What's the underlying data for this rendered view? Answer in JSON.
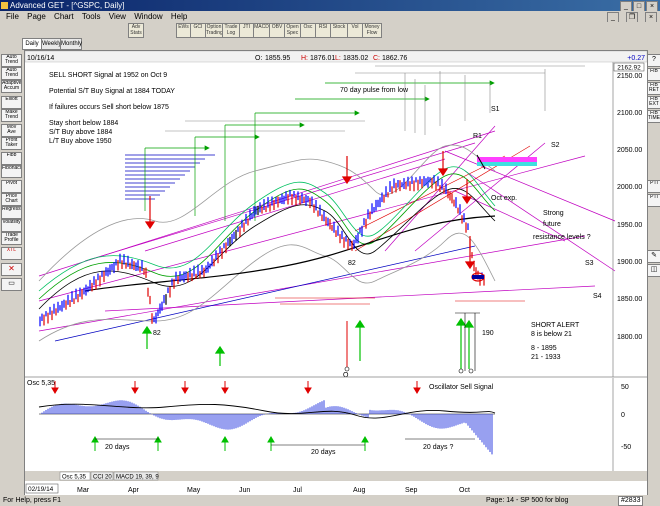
{
  "window": {
    "title": "Advanced GET - [^GSPC, Daily]"
  },
  "menu": [
    "File",
    "Page",
    "Chart",
    "Tools",
    "View",
    "Window",
    "Help"
  ],
  "toolbar": [
    "Adv Stats",
    "EWs",
    "GCI",
    "Option Trading",
    "Trade Log",
    "JTI",
    "MACD",
    "OBV",
    "Open Spec",
    "Osc",
    "RSI",
    "Stock",
    "Vol",
    "Money Flow"
  ],
  "period_tabs": [
    "Daily",
    "Weekly",
    "Monthly"
  ],
  "left_tools": [
    "Auto Trend",
    "Auto Trend",
    "Adaptive Accum",
    "Elliott",
    "Make Trend",
    "Mov Ave",
    "Profit Taker",
    "Fibb",
    "Fibonacci",
    "Pivot",
    "Price Chart",
    "Regression",
    "Volatility",
    "Trade Profile",
    "XTL"
  ],
  "right_tools": [
    "?",
    "FIB",
    "FIB RET",
    "FIB EXT",
    "FIB TIME",
    "PTI",
    "PTI"
  ],
  "chart": {
    "date": "10/16/14",
    "ohlc": {
      "o_label": "O:",
      "o": "1855.95",
      "h_label": "H:",
      "h": "1876.01",
      "l_label": "L:",
      "l": "1835.02",
      "c_label": "C:",
      "c": "1862.76"
    },
    "change": "+0.27",
    "last_price_tag": "2162.92",
    "notes": [
      "SELL SHORT Signal at 1952 on Oct 9",
      "Potential S/T Buy Signal at 1884 TODAY",
      "If failures occurs Sell short below 1875",
      "Stay short below 1884",
      "S/T Buy above 1884",
      "L/T Buy above 1950"
    ],
    "pulse_label": "70 day pulse from low",
    "labels": {
      "s1": "S1",
      "s2": "S2",
      "s3": "S3",
      "s4": "S4",
      "r1": "R1",
      "oct_exp": "Oct exp.",
      "strong": "Strong",
      "future": "future",
      "resistance": "resistance levels ?",
      "low82a": "82",
      "low82b": "82",
      "o": "O",
      "low190": "190"
    },
    "short_alert": [
      "SHORT ALERT",
      "8 is below 21",
      "8   - 1895",
      "21  - 1933"
    ],
    "price_axis": [
      "2150.00",
      "2100.00",
      "2050.00",
      "2000.00",
      "1950.00",
      "1900.00",
      "1850.00",
      "1800.00"
    ],
    "osc_title": "Osc 5,35",
    "osc_signal": "Oscillator Sell Signal",
    "osc_axis": [
      "50",
      "0",
      "-50"
    ],
    "osc_days": [
      "20 days",
      "20 days",
      "20 days ?"
    ],
    "indicator_tabs": [
      "Osc 5,35",
      "CCI 20",
      "MACD 19, 39, 9"
    ],
    "date_box": "02/19/14",
    "months": [
      "Mar",
      "Apr",
      "May",
      "Jun",
      "Jul",
      "Aug",
      "Sep",
      "Oct"
    ]
  },
  "status": {
    "help": "For Help, press F1",
    "page": "Page: 14 - SP 500 for blog",
    "ticket": "#2833"
  },
  "colors": {
    "up_bar": "#0000ff",
    "down_bar": "#e00000",
    "neutral_bar": "#000000",
    "band": "#c000c0",
    "pulse": "#00a000",
    "sell_arrow": "#e00000",
    "buy_arrow": "#00c000"
  }
}
